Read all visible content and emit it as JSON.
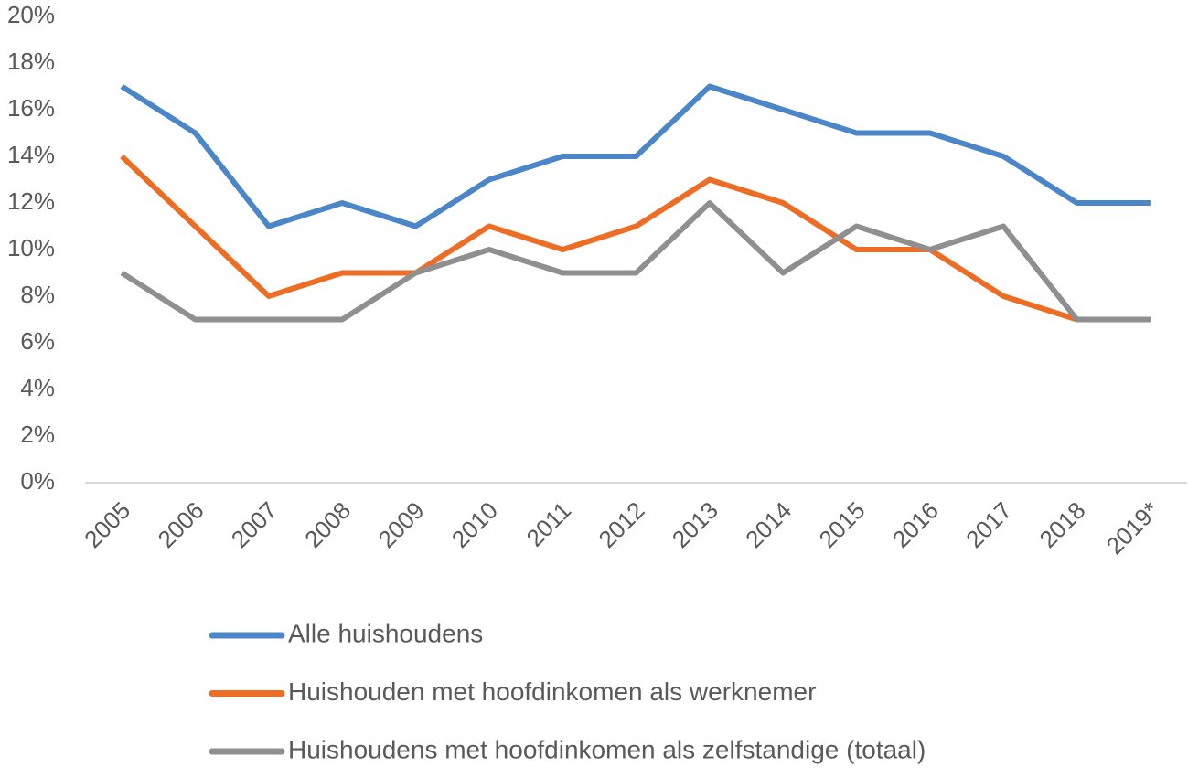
{
  "chart_data": {
    "type": "line",
    "categories": [
      "2005",
      "2006",
      "2007",
      "2008",
      "2009",
      "2010",
      "2011",
      "2012",
      "2013",
      "2014",
      "2015",
      "2016",
      "2017",
      "2018",
      "2019*"
    ],
    "series": [
      {
        "name": "Alle huishoudens",
        "color": "#4a86c8",
        "values": [
          17,
          15,
          11,
          12,
          11,
          13,
          14,
          14,
          17,
          16,
          15,
          15,
          14,
          12,
          12
        ]
      },
      {
        "name": "Huishouden met hoofdinkomen als werknemer",
        "color": "#ed6d24",
        "values": [
          14,
          11,
          8,
          9,
          9,
          11,
          10,
          11,
          13,
          12,
          10,
          10,
          8,
          7,
          7
        ]
      },
      {
        "name": "Huishoudens met hoofdinkomen als zelfstandige (totaal)",
        "color": "#8f8f8f",
        "values": [
          9,
          7,
          7,
          7,
          9,
          10,
          9,
          9,
          12,
          9,
          11,
          10,
          11,
          7,
          7
        ]
      }
    ],
    "ylim": [
      0,
      20
    ],
    "yticks": [
      {
        "value": 0,
        "label": "0%"
      },
      {
        "value": 2,
        "label": "2%"
      },
      {
        "value": 4,
        "label": "4%"
      },
      {
        "value": 6,
        "label": "6%"
      },
      {
        "value": 8,
        "label": "8%"
      },
      {
        "value": 10,
        "label": "10%"
      },
      {
        "value": 12,
        "label": "12%"
      },
      {
        "value": 14,
        "label": "14%"
      },
      {
        "value": 16,
        "label": "16%"
      },
      {
        "value": 18,
        "label": "18%"
      },
      {
        "value": 20,
        "label": "20%"
      }
    ],
    "grid": false,
    "legend": "bottom"
  }
}
